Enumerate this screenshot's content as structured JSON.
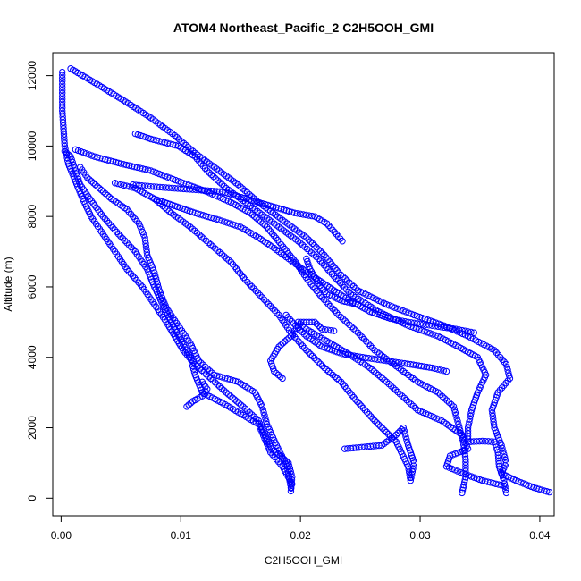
{
  "chart_data": {
    "type": "scatter",
    "title": "ATOM4 Northeast_Pacific_2 C2H5OOH_GMI",
    "xlabel": "C2H5OOH_GMI",
    "ylabel": "Altitude (m)",
    "xlim": [
      -0.0007,
      0.0412
    ],
    "ylim": [
      -500,
      12650
    ],
    "xticks": [
      0.0,
      0.01,
      0.02,
      0.03,
      0.04
    ],
    "xtick_labels": [
      "0.00",
      "0.01",
      "0.02",
      "0.03",
      "0.04"
    ],
    "yticks": [
      0,
      2000,
      4000,
      6000,
      8000,
      10000,
      12000
    ],
    "ytick_labels": [
      "0",
      "2000",
      "4000",
      "6000",
      "8000",
      "10000",
      "12000"
    ],
    "grid": false,
    "legend": "none",
    "marker": "open-circle",
    "color": "#0000ff",
    "series": [
      {
        "points": [
          [
            0.0192,
            200
          ],
          [
            0.0193,
            600
          ],
          [
            0.019,
            1000
          ],
          [
            0.0176,
            1400
          ],
          [
            0.017,
            1800
          ],
          [
            0.0165,
            2200
          ],
          [
            0.0152,
            2600
          ],
          [
            0.0138,
            3000
          ],
          [
            0.0125,
            3400
          ],
          [
            0.0112,
            3800
          ],
          [
            0.0102,
            4200
          ],
          [
            0.0095,
            4600
          ],
          [
            0.0088,
            5000
          ],
          [
            0.0078,
            5500
          ],
          [
            0.0068,
            6000
          ],
          [
            0.0055,
            6500
          ],
          [
            0.0045,
            7000
          ],
          [
            0.0035,
            7500
          ],
          [
            0.0025,
            8000
          ],
          [
            0.0018,
            8500
          ],
          [
            0.0012,
            9000
          ],
          [
            0.0006,
            9500
          ],
          [
            0.0003,
            10000
          ],
          [
            0.0002,
            10500
          ],
          [
            0.0001,
            11000
          ],
          [
            0.0001,
            11500
          ],
          [
            0.0001,
            12100
          ]
        ]
      },
      {
        "points": [
          [
            0.0193,
            400
          ],
          [
            0.0185,
            900
          ],
          [
            0.0175,
            1300
          ],
          [
            0.017,
            1700
          ],
          [
            0.0165,
            2100
          ],
          [
            0.015,
            2400
          ],
          [
            0.0135,
            2700
          ],
          [
            0.0118,
            3000
          ],
          [
            0.0112,
            3500
          ],
          [
            0.0108,
            4000
          ],
          [
            0.01,
            4500
          ],
          [
            0.0092,
            5000
          ],
          [
            0.0085,
            5500
          ],
          [
            0.0078,
            6000
          ],
          [
            0.0072,
            6500
          ],
          [
            0.0062,
            7000
          ],
          [
            0.0048,
            7500
          ],
          [
            0.0035,
            8000
          ],
          [
            0.0024,
            8500
          ],
          [
            0.0016,
            8900
          ],
          [
            0.0012,
            9300
          ],
          [
            0.0008,
            9700
          ],
          [
            0.0003,
            9850
          ]
        ]
      },
      {
        "points": [
          [
            0.0192,
            300
          ],
          [
            0.0189,
            900
          ],
          [
            0.018,
            1500
          ],
          [
            0.0172,
            2100
          ],
          [
            0.0168,
            2600
          ],
          [
            0.0162,
            3000
          ],
          [
            0.0148,
            3300
          ],
          [
            0.0128,
            3500
          ],
          [
            0.0115,
            3900
          ],
          [
            0.0108,
            4400
          ],
          [
            0.0098,
            4900
          ],
          [
            0.0088,
            5400
          ],
          [
            0.0082,
            5900
          ],
          [
            0.0078,
            6400
          ],
          [
            0.0072,
            6900
          ],
          [
            0.007,
            7400
          ],
          [
            0.0065,
            7800
          ],
          [
            0.0055,
            8200
          ],
          [
            0.0042,
            8500
          ],
          [
            0.0032,
            8800
          ],
          [
            0.0022,
            9100
          ],
          [
            0.0016,
            9400
          ]
        ]
      },
      {
        "points": [
          [
            0.0237,
            1400
          ],
          [
            0.0268,
            1500
          ],
          [
            0.028,
            1800
          ],
          [
            0.0286,
            2000
          ],
          [
            0.029,
            1500
          ],
          [
            0.0295,
            1000
          ],
          [
            0.0292,
            500
          ],
          [
            0.029,
            900
          ],
          [
            0.028,
            1600
          ],
          [
            0.0262,
            2200
          ],
          [
            0.0246,
            2800
          ],
          [
            0.0234,
            3300
          ],
          [
            0.022,
            3700
          ],
          [
            0.0205,
            4200
          ],
          [
            0.0192,
            4700
          ],
          [
            0.0182,
            5200
          ],
          [
            0.0168,
            5700
          ],
          [
            0.0154,
            6200
          ],
          [
            0.0142,
            6700
          ],
          [
            0.0125,
            7200
          ],
          [
            0.0108,
            7700
          ],
          [
            0.0092,
            8100
          ],
          [
            0.0078,
            8500
          ],
          [
            0.0062,
            8800
          ],
          [
            0.0045,
            8950
          ]
        ]
      },
      {
        "points": [
          [
            0.0335,
            150
          ],
          [
            0.0338,
            600
          ],
          [
            0.0338,
            1100
          ],
          [
            0.0336,
            1600
          ],
          [
            0.0332,
            2100
          ],
          [
            0.0328,
            2600
          ],
          [
            0.0315,
            3000
          ],
          [
            0.0298,
            3300
          ],
          [
            0.0282,
            3700
          ],
          [
            0.0262,
            4200
          ],
          [
            0.0248,
            4700
          ],
          [
            0.0232,
            5200
          ],
          [
            0.0218,
            5700
          ],
          [
            0.0206,
            6200
          ],
          [
            0.0196,
            6700
          ],
          [
            0.0184,
            7200
          ],
          [
            0.0172,
            7700
          ],
          [
            0.0158,
            8100
          ],
          [
            0.0142,
            8400
          ],
          [
            0.0122,
            8700
          ],
          [
            0.0098,
            9000
          ],
          [
            0.0075,
            9300
          ],
          [
            0.005,
            9500
          ],
          [
            0.0028,
            9700
          ],
          [
            0.0012,
            9900
          ]
        ]
      },
      {
        "points": [
          [
            0.0372,
            150
          ],
          [
            0.037,
            500
          ],
          [
            0.0366,
            900
          ],
          [
            0.0365,
            1300
          ],
          [
            0.0362,
            1600
          ],
          [
            0.0352,
            1620
          ],
          [
            0.034,
            1600
          ],
          [
            0.034,
            2000
          ],
          [
            0.0343,
            2500
          ],
          [
            0.0348,
            3000
          ],
          [
            0.0355,
            3500
          ],
          [
            0.0348,
            4000
          ],
          [
            0.0332,
            4300
          ],
          [
            0.0315,
            4600
          ],
          [
            0.029,
            4900
          ],
          [
            0.0265,
            5300
          ],
          [
            0.0242,
            5800
          ],
          [
            0.0228,
            6300
          ],
          [
            0.0215,
            6800
          ],
          [
            0.0198,
            7300
          ],
          [
            0.0178,
            7800
          ],
          [
            0.0158,
            8300
          ],
          [
            0.0138,
            8800
          ],
          [
            0.0122,
            9300
          ],
          [
            0.0112,
            9700
          ],
          [
            0.0098,
            10000
          ],
          [
            0.0075,
            10200
          ],
          [
            0.0062,
            10350
          ]
        ]
      },
      {
        "points": [
          [
            0.0408,
            170
          ],
          [
            0.0395,
            300
          ],
          [
            0.038,
            500
          ],
          [
            0.0368,
            700
          ],
          [
            0.0372,
            1000
          ],
          [
            0.0368,
            1500
          ],
          [
            0.0362,
            2000
          ],
          [
            0.036,
            2500
          ],
          [
            0.0365,
            3000
          ],
          [
            0.0375,
            3400
          ],
          [
            0.0372,
            3800
          ],
          [
            0.0362,
            4200
          ],
          [
            0.034,
            4600
          ],
          [
            0.032,
            4900
          ],
          [
            0.0295,
            5200
          ],
          [
            0.0272,
            5500
          ],
          [
            0.0248,
            5900
          ],
          [
            0.0232,
            6400
          ],
          [
            0.022,
            6900
          ],
          [
            0.0205,
            7400
          ],
          [
            0.0185,
            7900
          ],
          [
            0.0165,
            8400
          ],
          [
            0.0148,
            8900
          ],
          [
            0.0128,
            9400
          ],
          [
            0.0112,
            9800
          ],
          [
            0.0095,
            10300
          ],
          [
            0.0075,
            10800
          ],
          [
            0.0052,
            11300
          ],
          [
            0.0028,
            11800
          ],
          [
            0.0008,
            12200
          ]
        ]
      },
      {
        "points": [
          [
            0.037,
            350
          ],
          [
            0.0352,
            500
          ],
          [
            0.0336,
            700
          ],
          [
            0.0322,
            900
          ],
          [
            0.0325,
            1200
          ],
          [
            0.034,
            1400
          ],
          [
            0.0335,
            1800
          ],
          [
            0.0318,
            2200
          ],
          [
            0.0298,
            2500
          ],
          [
            0.0285,
            2900
          ],
          [
            0.0272,
            3300
          ],
          [
            0.0258,
            3700
          ],
          [
            0.024,
            4100
          ],
          [
            0.022,
            4500
          ],
          [
            0.0205,
            4800
          ],
          [
            0.0198,
            5000
          ],
          [
            0.0212,
            5000
          ],
          [
            0.0218,
            4800
          ],
          [
            0.0228,
            4750
          ]
        ]
      },
      {
        "points": [
          [
            0.0345,
            4700
          ],
          [
            0.033,
            4800
          ],
          [
            0.031,
            4900
          ],
          [
            0.029,
            5000
          ],
          [
            0.0275,
            5100
          ],
          [
            0.0258,
            5300
          ],
          [
            0.0242,
            5600
          ],
          [
            0.0228,
            5900
          ],
          [
            0.0215,
            6200
          ],
          [
            0.0202,
            6500
          ],
          [
            0.019,
            6800
          ],
          [
            0.0178,
            7100
          ],
          [
            0.0165,
            7400
          ],
          [
            0.015,
            7700
          ],
          [
            0.0132,
            7900
          ],
          [
            0.0112,
            8100
          ],
          [
            0.0095,
            8300
          ],
          [
            0.0078,
            8500
          ]
        ]
      },
      {
        "points": [
          [
            0.0322,
            3600
          ],
          [
            0.031,
            3700
          ],
          [
            0.0292,
            3800
          ],
          [
            0.0272,
            3900
          ],
          [
            0.0252,
            4000
          ],
          [
            0.0235,
            4100
          ],
          [
            0.0218,
            4300
          ],
          [
            0.0205,
            4600
          ],
          [
            0.0196,
            4900
          ],
          [
            0.0188,
            5200
          ]
        ]
      },
      {
        "points": [
          [
            0.0205,
            6800
          ],
          [
            0.0208,
            6500
          ],
          [
            0.0215,
            6100
          ],
          [
            0.0222,
            5800
          ],
          [
            0.0235,
            5600
          ],
          [
            0.0248,
            5500
          ]
        ]
      },
      {
        "points": [
          [
            0.0235,
            7300
          ],
          [
            0.023,
            7500
          ],
          [
            0.0222,
            7800
          ],
          [
            0.0212,
            8000
          ],
          [
            0.0195,
            8100
          ],
          [
            0.0175,
            8300
          ],
          [
            0.0155,
            8500
          ],
          [
            0.0135,
            8700
          ],
          [
            0.0115,
            8750
          ],
          [
            0.0095,
            8800
          ],
          [
            0.0075,
            8850
          ],
          [
            0.006,
            8900
          ]
        ]
      },
      {
        "points": [
          [
            0.0185,
            3400
          ],
          [
            0.0178,
            3600
          ],
          [
            0.0175,
            3900
          ],
          [
            0.0182,
            4300
          ],
          [
            0.0192,
            4600
          ],
          [
            0.0198,
            4900
          ]
        ]
      },
      {
        "points": [
          [
            0.0105,
            2600
          ],
          [
            0.011,
            2750
          ],
          [
            0.0118,
            2900
          ],
          [
            0.0122,
            3100
          ],
          [
            0.0118,
            3300
          ]
        ]
      }
    ]
  }
}
